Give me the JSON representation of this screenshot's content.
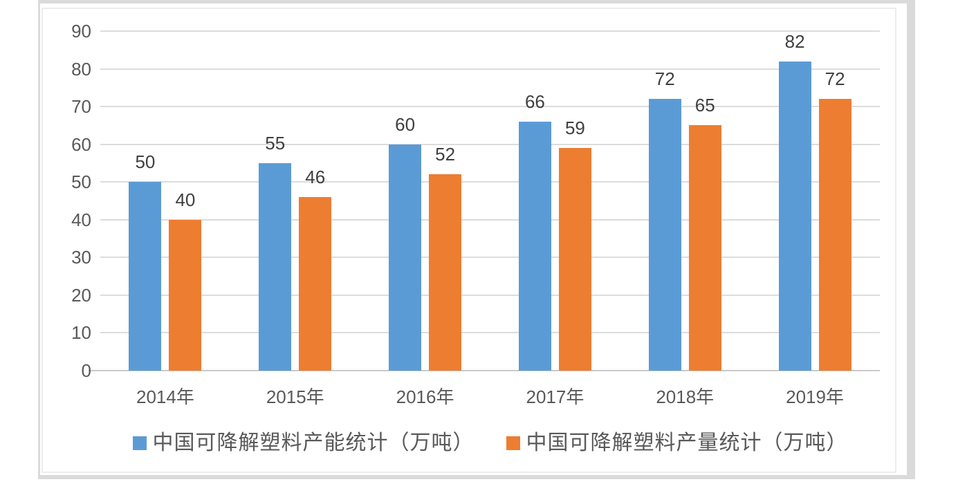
{
  "chart_data": {
    "type": "bar",
    "title": "",
    "xlabel": "",
    "ylabel": "",
    "categories": [
      "2014年",
      "2015年",
      "2016年",
      "2017年",
      "2018年",
      "2019年"
    ],
    "series": [
      {
        "name": "中国可降解塑料产能统计（万吨）",
        "color": "#5B9BD5",
        "values": [
          50,
          55,
          60,
          66,
          72,
          82
        ]
      },
      {
        "name": "中国可降解塑料产量统计（万吨）",
        "color": "#ED7D31",
        "values": [
          40,
          46,
          52,
          59,
          65,
          72
        ]
      }
    ],
    "ylim": [
      0,
      90
    ],
    "ytick_step": 10,
    "yticks": [
      0,
      10,
      20,
      30,
      40,
      50,
      60,
      70,
      80,
      90
    ],
    "grid": "horizontal",
    "legend_position": "bottom",
    "value_labels": true
  },
  "colors": {
    "series_capacity": "#5B9BD5",
    "series_output": "#ED7D31",
    "gridline": "#DCDCDC",
    "axis_line": "#C9C9C9",
    "axis_text": "#595959",
    "value_label_text": "#3F3F3F",
    "frame_border": "#DADADA",
    "inner_border": "#ECECEC",
    "background": "#FFFFFF"
  }
}
